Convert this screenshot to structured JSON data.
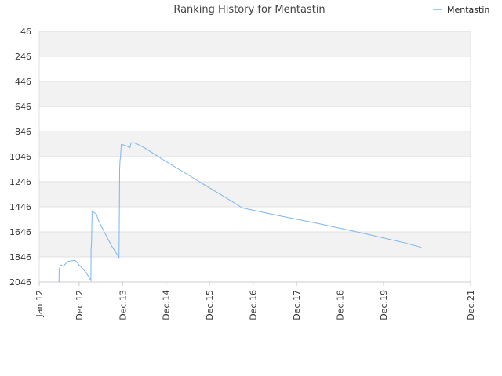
{
  "chart_data": {
    "type": "line",
    "title": "Ranking History for Mentastin",
    "xlabel": "",
    "ylabel": "",
    "y_inverted": true,
    "ylim": [
      2046,
      46
    ],
    "xlim": [
      "2012-01-01",
      "2021-12-01"
    ],
    "y_ticks": [
      "46",
      "246",
      "446",
      "646",
      "846",
      "1046",
      "1246",
      "1446",
      "1646",
      "1846",
      "2046"
    ],
    "x_ticks": [
      {
        "label": "Jan.12",
        "date": "2012-01-01"
      },
      {
        "label": "Dec.12",
        "date": "2012-12-01"
      },
      {
        "label": "Dec.13",
        "date": "2013-12-01"
      },
      {
        "label": "Dec.14",
        "date": "2014-12-01"
      },
      {
        "label": "Dec.15",
        "date": "2015-12-01"
      },
      {
        "label": "Dec.16",
        "date": "2016-12-01"
      },
      {
        "label": "Dec.17",
        "date": "2017-12-01"
      },
      {
        "label": "Dec.18",
        "date": "2018-12-01"
      },
      {
        "label": "Dec.19",
        "date": "2019-12-01"
      },
      {
        "label": "Dec.21",
        "date": "2021-12-01"
      }
    ],
    "grid": true,
    "legend_position": "top-right",
    "series": [
      {
        "name": "Mentastin",
        "color": "#7cb5ec",
        "points": [
          [
            "2012-06-15",
            2046
          ],
          [
            "2012-06-16",
            1946
          ],
          [
            "2012-06-25",
            1920
          ],
          [
            "2012-07-05",
            1910
          ],
          [
            "2012-07-20",
            1920
          ],
          [
            "2012-08-10",
            1900
          ],
          [
            "2012-09-01",
            1880
          ],
          [
            "2012-09-20",
            1878
          ],
          [
            "2012-10-10",
            1875
          ],
          [
            "2012-10-25",
            1872
          ],
          [
            "2012-11-05",
            1880
          ],
          [
            "2012-12-01",
            1910
          ],
          [
            "2013-01-01",
            1940
          ],
          [
            "2013-02-01",
            1975
          ],
          [
            "2013-03-10",
            2035
          ],
          [
            "2013-03-11",
            1780
          ],
          [
            "2013-03-15",
            1740
          ],
          [
            "2013-03-20",
            1480
          ],
          [
            "2013-04-01",
            1490
          ],
          [
            "2013-04-25",
            1505
          ],
          [
            "2013-05-10",
            1550
          ],
          [
            "2013-07-01",
            1650
          ],
          [
            "2013-09-01",
            1760
          ],
          [
            "2013-11-01",
            1850
          ],
          [
            "2013-11-02",
            1720
          ],
          [
            "2013-11-06",
            1150
          ],
          [
            "2013-11-10",
            1070
          ],
          [
            "2013-11-13",
            1050
          ],
          [
            "2013-11-20",
            950
          ],
          [
            "2013-12-01",
            950
          ],
          [
            "2014-01-01",
            960
          ],
          [
            "2014-02-01",
            975
          ],
          [
            "2014-02-10",
            935
          ],
          [
            "2014-03-01",
            935
          ],
          [
            "2014-04-01",
            945
          ],
          [
            "2014-06-01",
            975
          ],
          [
            "2014-09-01",
            1030
          ],
          [
            "2014-12-01",
            1085
          ],
          [
            "2015-06-01",
            1190
          ],
          [
            "2015-12-01",
            1295
          ],
          [
            "2016-06-01",
            1400
          ],
          [
            "2016-09-01",
            1455
          ],
          [
            "2017-06-01",
            1510
          ],
          [
            "2018-06-01",
            1580
          ],
          [
            "2019-06-01",
            1655
          ],
          [
            "2020-06-01",
            1735
          ],
          [
            "2020-10-15",
            1770
          ]
        ]
      }
    ]
  }
}
